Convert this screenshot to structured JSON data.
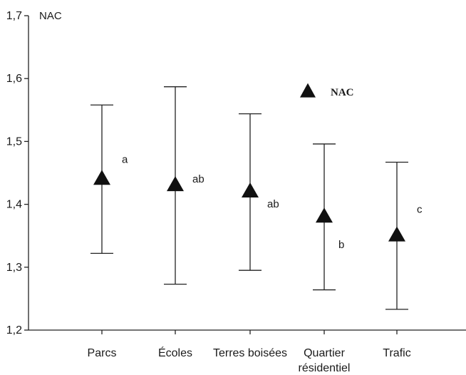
{
  "chart_data": {
    "type": "scatter",
    "ylabel": "NAC",
    "ylim": [
      1.2,
      1.7
    ],
    "yticks": [
      "1,2",
      "1,3",
      "1,4",
      "1,5",
      "1,6",
      "1,7"
    ],
    "ytick_values": [
      1.2,
      1.3,
      1.4,
      1.5,
      1.6,
      1.7
    ],
    "categories": [
      "Parcs",
      "Écoles",
      "Terres boisées",
      "Quartier résidentiel",
      "Trafic"
    ],
    "category_lines": [
      [
        "Parcs"
      ],
      [
        "Écoles"
      ],
      [
        "Terres boisées"
      ],
      [
        "Quartier",
        "résidentiel"
      ],
      [
        "Trafic"
      ]
    ],
    "series": [
      {
        "name": "NAC",
        "marker": "triangle",
        "values": [
          1.44,
          1.43,
          1.42,
          1.38,
          1.35
        ],
        "error_low": [
          1.322,
          1.273,
          1.295,
          1.264,
          1.233
        ],
        "error_high": [
          1.558,
          1.587,
          1.544,
          1.496,
          1.467
        ],
        "significance": [
          "a",
          "ab",
          "ab",
          "b",
          "c"
        ]
      }
    ],
    "legend": {
      "label": "NAC",
      "position": "top-right"
    },
    "grid": false,
    "colors": {
      "marker": "#111111",
      "axis": "#222222"
    }
  }
}
